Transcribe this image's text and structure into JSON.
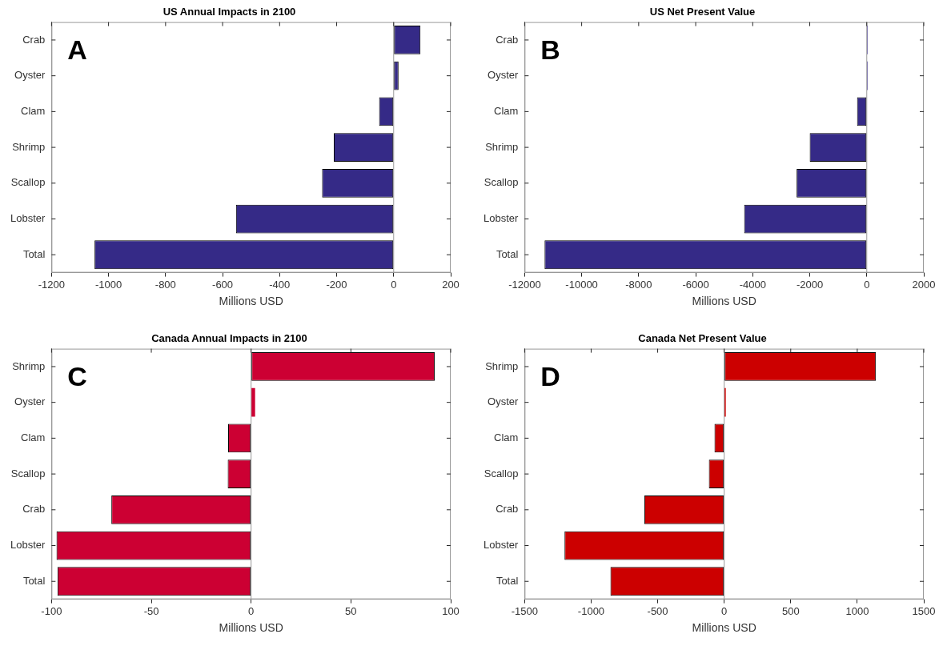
{
  "chart_data": [
    {
      "type": "bar",
      "orientation": "horizontal",
      "title": "US Annual Impacts in 2100",
      "xlabel": "Millions USD",
      "categories": [
        "Crab",
        "Oyster",
        "Clam",
        "Shrimp",
        "Scallop",
        "Lobster",
        "Total"
      ],
      "values": [
        94,
        17,
        -51,
        -210,
        -251,
        -553,
        -1049
      ],
      "color": "#352a87",
      "xlim": [
        -1200,
        200
      ],
      "xticks": [
        -1200,
        -1000,
        -800,
        -600,
        -400,
        -200,
        0,
        200
      ],
      "grid": false,
      "legend": false,
      "annotations": [
        "A"
      ],
      "ref_lines": [
        {
          "axis": "x",
          "value": 0,
          "color": "#999999"
        }
      ]
    },
    {
      "type": "bar",
      "orientation": "horizontal",
      "title": "US Net Present Value",
      "xlabel": "Millions USD",
      "categories": [
        "Crab",
        "Oyster",
        "Clam",
        "Shrimp",
        "Scallop",
        "Lobster",
        "Total"
      ],
      "values": [
        30,
        30,
        -340,
        -2000,
        -2460,
        -4300,
        -11300
      ],
      "color": "#352a87",
      "xlim": [
        -12000,
        2000
      ],
      "xticks": [
        -12000,
        -10000,
        -8000,
        -6000,
        -4000,
        -2000,
        0,
        2000
      ],
      "grid": false,
      "legend": false,
      "annotations": [
        "B"
      ],
      "ref_lines": [
        {
          "axis": "x",
          "value": 0,
          "color": "#999999"
        }
      ]
    },
    {
      "type": "bar",
      "orientation": "horizontal",
      "title": "Canada Annual Impacts in 2100",
      "xlabel": "Millions USD",
      "categories": [
        "Shrimp",
        "Oyster",
        "Clam",
        "Scallop",
        "Crab",
        "Lobster",
        "Total"
      ],
      "values": [
        92,
        2,
        -11.5,
        -11.7,
        -70,
        -97.5,
        -97
      ],
      "color": "#cc0033",
      "xlim": [
        -100,
        100
      ],
      "xticks": [
        -100,
        -50,
        0,
        50,
        100
      ],
      "grid": false,
      "legend": false,
      "annotations": [
        "C"
      ],
      "ref_lines": [
        {
          "axis": "x",
          "value": 0,
          "color": "#999999"
        }
      ]
    },
    {
      "type": "bar",
      "orientation": "horizontal",
      "title": "Canada Net Present Value",
      "xlabel": "Millions USD",
      "categories": [
        "Shrimp",
        "Oyster",
        "Clam",
        "Scallop",
        "Crab",
        "Lobster",
        "Total"
      ],
      "values": [
        1140,
        12,
        -73,
        -115,
        -600,
        -1200,
        -855
      ],
      "color": "#cc0000",
      "xlim": [
        -1500,
        1500
      ],
      "xticks": [
        -1500,
        -1000,
        -500,
        0,
        500,
        1000,
        1500
      ],
      "grid": false,
      "legend": false,
      "annotations": [
        "D"
      ],
      "ref_lines": [
        {
          "axis": "x",
          "value": 0,
          "color": "#999999"
        }
      ]
    }
  ]
}
